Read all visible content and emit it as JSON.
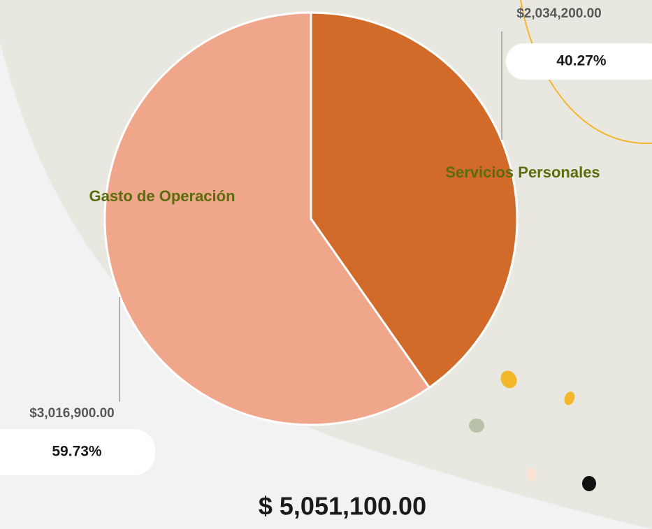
{
  "chart_data": {
    "type": "pie",
    "categories": [
      "Servicios Personales",
      "Gasto de Operación"
    ],
    "values": [
      40.27,
      59.73
    ],
    "value_labels": [
      "40.27%",
      "59.73%"
    ],
    "amount_labels": [
      "$2,034,200.00",
      "$3,016,900.00"
    ],
    "colors": [
      "#d26b2a",
      "#f0a68b"
    ],
    "total_label": "$  5,051,100.00"
  }
}
